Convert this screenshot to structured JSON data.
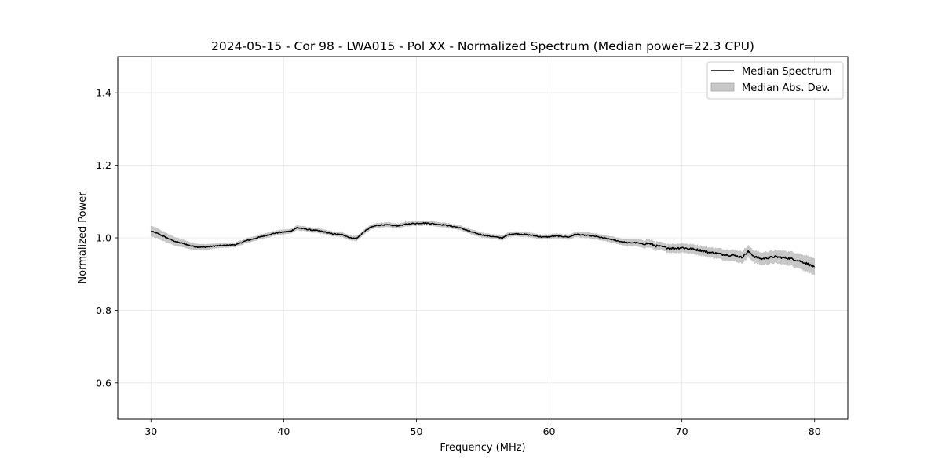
{
  "chart_data": {
    "type": "line",
    "title": "2024-05-15 - Cor 98 - LWA015 - Pol XX - Normalized Spectrum (Median power=22.3 CPU)",
    "xlabel": "Frequency (MHz)",
    "ylabel": "Normalized Power",
    "xlim": [
      27.5,
      82.5
    ],
    "ylim": [
      0.5,
      1.5
    ],
    "xticks": [
      30,
      40,
      50,
      60,
      70,
      80
    ],
    "yticks": [
      0.6,
      0.8,
      1.0,
      1.2,
      1.4
    ],
    "xtick_labels": [
      "30",
      "40",
      "50",
      "60",
      "70",
      "80"
    ],
    "ytick_labels": [
      "0.6",
      "0.8",
      "1.0",
      "1.2",
      "1.4"
    ],
    "grid": true,
    "legend_position": "top-right",
    "series": [
      {
        "name": "Median Spectrum",
        "kind": "line",
        "color": "#000000",
        "x": [
          30,
          30.5,
          31,
          31.5,
          32,
          32.5,
          33,
          33.5,
          34,
          34.5,
          35,
          35.5,
          36,
          36.5,
          37,
          37.5,
          38,
          38.5,
          39,
          39.5,
          40,
          40.5,
          41,
          41.5,
          42,
          42.5,
          43,
          43.5,
          44,
          44.5,
          45,
          45.5,
          46,
          46.5,
          47,
          47.5,
          48,
          48.5,
          49,
          49.5,
          50,
          50.5,
          51,
          51.5,
          52,
          52.5,
          53,
          53.5,
          54,
          54.5,
          55,
          55.5,
          56,
          56.5,
          57,
          57.5,
          58,
          58.5,
          59,
          59.5,
          60,
          60.5,
          61,
          61.5,
          62,
          62.5,
          63,
          63.5,
          64,
          64.5,
          65,
          65.5,
          66,
          66.5,
          67,
          67.5,
          68,
          68.5,
          69,
          69.5,
          70,
          70.5,
          71,
          71.5,
          72,
          72.5,
          73,
          73.5,
          74,
          74.5,
          75,
          75.5,
          76,
          76.5,
          77,
          77.5,
          78,
          78.5,
          79,
          79.5,
          80
        ],
        "values": [
          1.018,
          1.012,
          1.003,
          0.995,
          0.988,
          0.984,
          0.978,
          0.975,
          0.974,
          0.976,
          0.978,
          0.979,
          0.98,
          0.982,
          0.99,
          0.995,
          1.0,
          1.005,
          1.01,
          1.014,
          1.016,
          1.018,
          1.028,
          1.025,
          1.022,
          1.02,
          1.017,
          1.012,
          1.01,
          1.008,
          1.0,
          0.998,
          1.015,
          1.028,
          1.034,
          1.036,
          1.035,
          1.033,
          1.036,
          1.039,
          1.04,
          1.041,
          1.04,
          1.038,
          1.036,
          1.033,
          1.03,
          1.025,
          1.018,
          1.012,
          1.008,
          1.005,
          1.002,
          1.0,
          1.01,
          1.011,
          1.01,
          1.008,
          1.005,
          1.002,
          1.003,
          1.005,
          1.004,
          1.002,
          1.01,
          1.008,
          1.006,
          1.004,
          1.0,
          0.997,
          0.993,
          0.989,
          0.986,
          0.987,
          0.983,
          0.985,
          0.978,
          0.975,
          0.972,
          0.971,
          0.973,
          0.97,
          0.968,
          0.965,
          0.96,
          0.958,
          0.955,
          0.953,
          0.951,
          0.946,
          0.962,
          0.948,
          0.942,
          0.945,
          0.948,
          0.946,
          0.944,
          0.94,
          0.935,
          0.928,
          0.918
        ]
      },
      {
        "name": "Median Abs. Dev.",
        "kind": "band",
        "color": "#c8c8c8",
        "x": [
          30,
          35,
          40,
          45,
          50,
          55,
          60,
          65,
          67,
          70,
          72,
          75,
          77,
          80
        ],
        "halfwidth": [
          0.014,
          0.006,
          0.006,
          0.006,
          0.006,
          0.006,
          0.006,
          0.008,
          0.01,
          0.012,
          0.013,
          0.016,
          0.017,
          0.022
        ]
      }
    ]
  }
}
